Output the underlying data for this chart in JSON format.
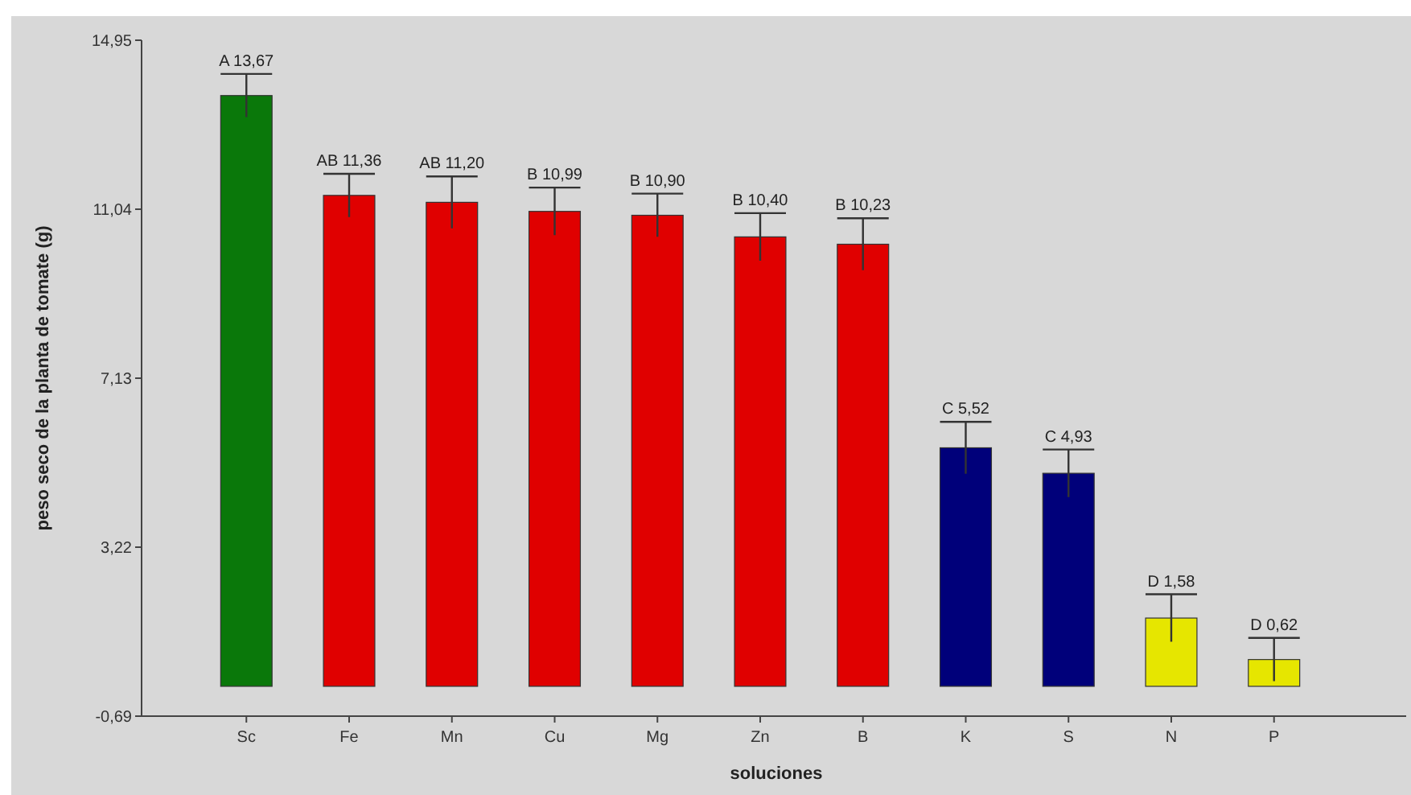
{
  "chart_data": {
    "type": "bar",
    "xlabel": "soluciones",
    "ylabel": "peso seco de la planta de tomate (g)",
    "categories": [
      "Sc",
      "Fe",
      "Mn",
      "Cu",
      "Mg",
      "Zn",
      "B",
      "K",
      "S",
      "N",
      "P"
    ],
    "values": [
      13.67,
      11.36,
      11.2,
      10.99,
      10.9,
      10.4,
      10.23,
      5.52,
      4.93,
      1.58,
      0.62
    ],
    "errors": [
      0.5,
      0.5,
      0.6,
      0.55,
      0.5,
      0.55,
      0.6,
      0.6,
      0.55,
      0.55,
      0.5
    ],
    "value_labels": [
      "A 13,67",
      "AB 11,36",
      "AB 11,20",
      "B 10,99",
      "B 10,90",
      "B 10,40",
      "B 10,23",
      "C 5,52",
      "C 4,93",
      "D 1,58",
      "D 0,62"
    ],
    "colors": [
      "#0a780a",
      "#e00000",
      "#e00000",
      "#e00000",
      "#e00000",
      "#e00000",
      "#e00000",
      "#00007a",
      "#00007a",
      "#e6e600",
      "#e6e600"
    ],
    "ylim": [
      -0.69,
      14.95
    ],
    "yticks": [
      {
        "value": -0.69,
        "label": "-0,69"
      },
      {
        "value": 3.22,
        "label": "3,22"
      },
      {
        "value": 7.13,
        "label": "7,13"
      },
      {
        "value": 11.04,
        "label": "11,04"
      },
      {
        "value": 14.95,
        "label": "14,95"
      }
    ],
    "grid": false
  }
}
